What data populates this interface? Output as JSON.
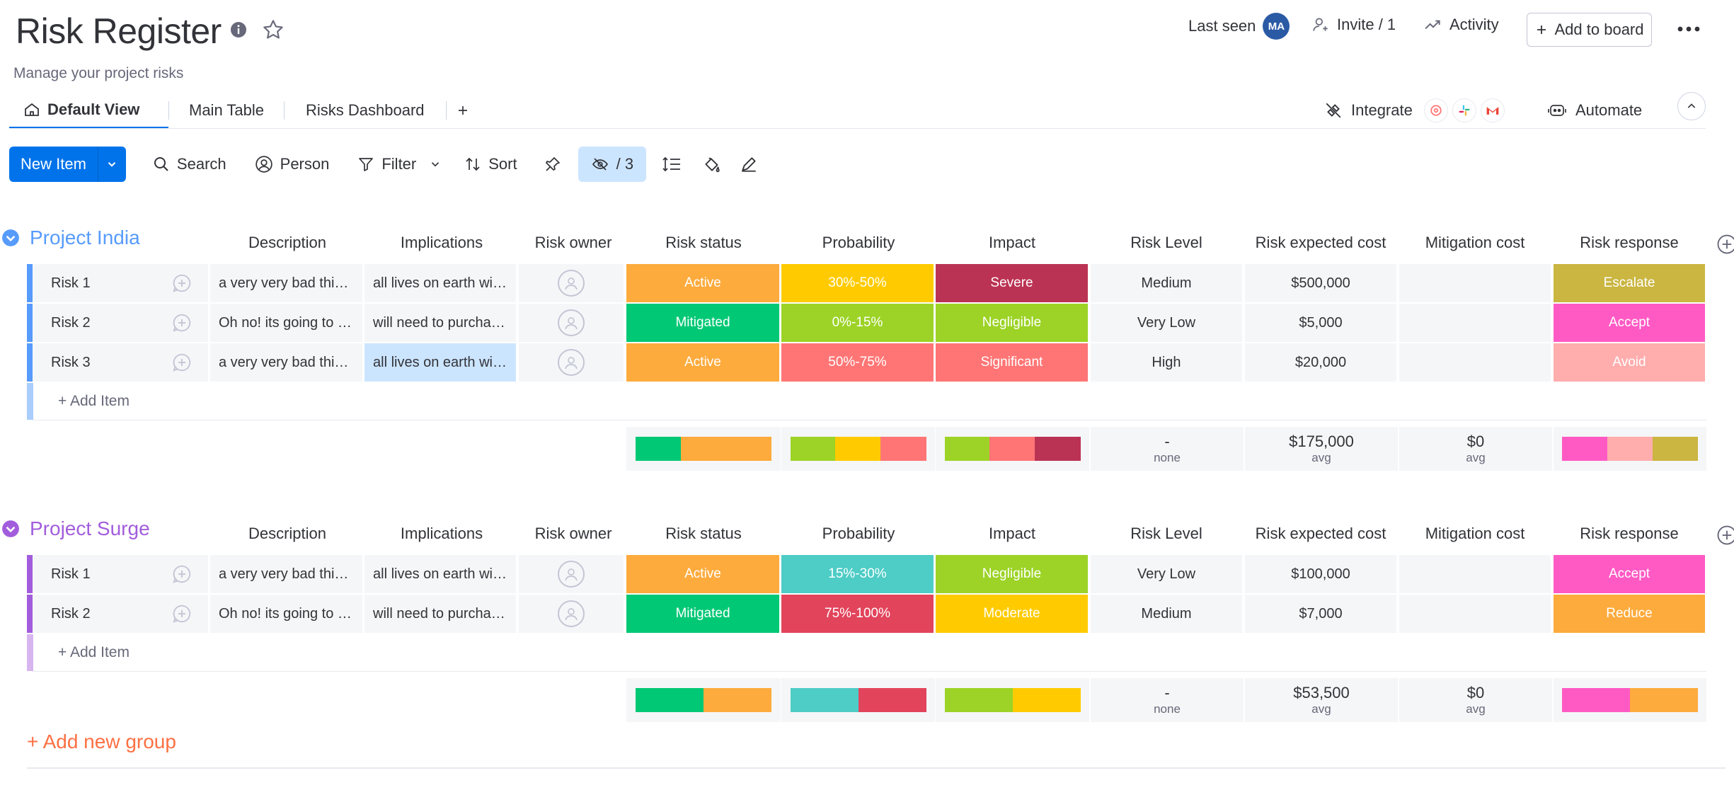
{
  "board": {
    "title": "Risk Register",
    "description": "Manage your project risks"
  },
  "header": {
    "last_seen": "Last seen",
    "avatar_initials": "MA",
    "invite": "Invite / 1",
    "activity": "Activity",
    "add_to_board": "Add to board"
  },
  "tabs": [
    {
      "label": "Default View",
      "active": true
    },
    {
      "label": "Main Table",
      "active": false
    },
    {
      "label": "Risks Dashboard",
      "active": false
    }
  ],
  "integrations": {
    "integrate": "Integrate",
    "automate": "Automate"
  },
  "toolbar": {
    "new_item": "New Item",
    "search": "Search",
    "person": "Person",
    "filter": "Filter",
    "sort": "Sort",
    "hidden": "/ 3"
  },
  "columns": [
    "Description",
    "Implications",
    "Risk owner",
    "Risk status",
    "Probability",
    "Impact",
    "Risk Level",
    "Risk expected cost",
    "Mitigation cost",
    "Risk response"
  ],
  "colors": {
    "active": "#fdab3d",
    "mitigated": "#00c875",
    "p30_50": "#ffcb00",
    "p0_15": "#9cd326",
    "p50_75": "#ff7575",
    "p15_30": "#4eccc6",
    "p75_100": "#e2445c",
    "severe": "#bb3354",
    "negligible": "#9cd326",
    "significant": "#ff7575",
    "moderate": "#ffcb00",
    "escalate": "#cab641",
    "accept": "#ff5ac4",
    "avoid": "#ffadad",
    "reduce": "#fdab3d",
    "group_india": "#579bfc",
    "group_surge": "#a25ddc"
  },
  "groups": [
    {
      "name": "Project India",
      "color": "#579bfc",
      "light": "#a9cdfd",
      "rows": [
        {
          "name": "Risk 1",
          "description": "a very very bad thing will happen",
          "implications": "all lives on earth will end",
          "status": "Active",
          "status_color": "#fdab3d",
          "probability": "30%-50%",
          "prob_color": "#ffcb00",
          "impact": "Severe",
          "impact_color": "#bb3354",
          "level": "Medium",
          "cost": "$500,000",
          "mitigation": "",
          "response": "Escalate",
          "response_color": "#cab641"
        },
        {
          "name": "Risk 2",
          "description": "Oh no! its going to rain",
          "implications": "will need to purchase umbrellas",
          "status": "Mitigated",
          "status_color": "#00c875",
          "probability": "0%-15%",
          "prob_color": "#9cd326",
          "impact": "Negligible",
          "impact_color": "#9cd326",
          "level": "Very Low",
          "cost": "$5,000",
          "mitigation": "",
          "response": "Accept",
          "response_color": "#ff5ac4"
        },
        {
          "name": "Risk 3",
          "description": "a very very bad thing will happen",
          "implications": "all lives on earth will end",
          "status": "Active",
          "status_color": "#fdab3d",
          "probability": "50%-75%",
          "prob_color": "#ff7575",
          "impact": "Significant",
          "impact_color": "#ff7575",
          "level": "High",
          "cost": "$20,000",
          "mitigation": "",
          "response": "Avoid",
          "response_color": "#ffadad"
        }
      ],
      "add_item": "+ Add Item",
      "summary": {
        "status": [
          {
            "color": "#00c875",
            "share": 0.333
          },
          {
            "color": "#fdab3d",
            "share": 0.667
          }
        ],
        "probability": [
          {
            "color": "#9cd326",
            "share": 0.333
          },
          {
            "color": "#ffcb00",
            "share": 0.333
          },
          {
            "color": "#ff7575",
            "share": 0.334
          }
        ],
        "impact": [
          {
            "color": "#9cd326",
            "share": 0.333
          },
          {
            "color": "#ff7575",
            "share": 0.333
          },
          {
            "color": "#bb3354",
            "share": 0.334
          }
        ],
        "level_value": "-",
        "level_label": "none",
        "cost_value": "$175,000",
        "cost_label": "avg",
        "mitigation_value": "$0",
        "mitigation_label": "avg",
        "response": [
          {
            "color": "#ff5ac4",
            "share": 0.333
          },
          {
            "color": "#ffadad",
            "share": 0.333
          },
          {
            "color": "#cab641",
            "share": 0.334
          }
        ]
      }
    },
    {
      "name": "Project Surge",
      "color": "#a25ddc",
      "light": "#d7b6f0",
      "rows": [
        {
          "name": "Risk 1",
          "description": "a very very bad thing will happen",
          "implications": "all lives on earth will end",
          "status": "Active",
          "status_color": "#fdab3d",
          "probability": "15%-30%",
          "prob_color": "#4eccc6",
          "impact": "Negligible",
          "impact_color": "#9cd326",
          "level": "Very Low",
          "cost": "$100,000",
          "mitigation": "",
          "response": "Accept",
          "response_color": "#ff5ac4"
        },
        {
          "name": "Risk 2",
          "description": "Oh no! its going to rain",
          "implications": "will need to purchase umbrellas",
          "status": "Mitigated",
          "status_color": "#00c875",
          "probability": "75%-100%",
          "prob_color": "#e2445c",
          "impact": "Moderate",
          "impact_color": "#ffcb00",
          "level": "Medium",
          "cost": "$7,000",
          "mitigation": "",
          "response": "Reduce",
          "response_color": "#fdab3d"
        }
      ],
      "add_item": "+ Add Item",
      "summary": {
        "status": [
          {
            "color": "#00c875",
            "share": 0.5
          },
          {
            "color": "#fdab3d",
            "share": 0.5
          }
        ],
        "probability": [
          {
            "color": "#4eccc6",
            "share": 0.5
          },
          {
            "color": "#e2445c",
            "share": 0.5
          }
        ],
        "impact": [
          {
            "color": "#9cd326",
            "share": 0.5
          },
          {
            "color": "#ffcb00",
            "share": 0.5
          }
        ],
        "level_value": "-",
        "level_label": "none",
        "cost_value": "$53,500",
        "cost_label": "avg",
        "mitigation_value": "$0",
        "mitigation_label": "avg",
        "response": [
          {
            "color": "#ff5ac4",
            "share": 0.5
          },
          {
            "color": "#fdab3d",
            "share": 0.5
          }
        ]
      }
    }
  ],
  "add_group": "+ Add new group"
}
